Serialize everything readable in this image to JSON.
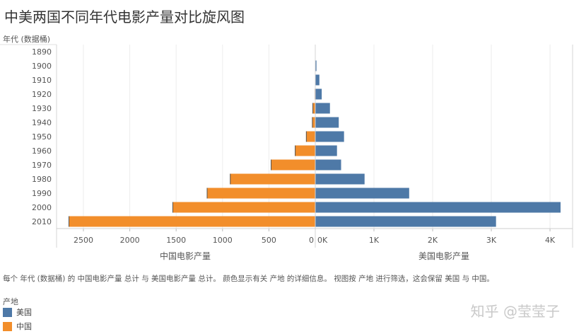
{
  "title": "中美两国不同年代电影产量对比旋风图",
  "y_header": "年代 (数据桶)",
  "caption": "每个 年代 (数据桶) 的 中国电影产量 总计 与 美国电影产量 总计。 颜色显示有关 产地 的详细信息。 视图按 产地 进行筛选，这会保留 美国 与 中国。",
  "legend": {
    "title": "产地",
    "items": [
      {
        "label": "美国",
        "color": "#4e79a7"
      },
      {
        "label": "中国",
        "color": "#f28e2b"
      }
    ]
  },
  "watermark": "知乎 @莹莹子",
  "chart_data": {
    "type": "bar",
    "orientation": "horizontal-butterfly",
    "categories": [
      "1890",
      "1900",
      "1910",
      "1920",
      "1930",
      "1940",
      "1950",
      "1960",
      "1970",
      "1980",
      "1990",
      "2000",
      "2010"
    ],
    "series": [
      {
        "name": "中国电影产量",
        "side": "left",
        "color": "#f28e2b",
        "values": [
          0,
          0,
          0,
          5,
          30,
          35,
          100,
          220,
          480,
          920,
          1170,
          1540,
          2660
        ]
      },
      {
        "name": "美国电影产量",
        "side": "right",
        "color": "#4e79a7",
        "values": [
          0,
          20,
          70,
          110,
          250,
          400,
          490,
          370,
          440,
          840,
          1600,
          4180,
          3080
        ]
      }
    ],
    "left_axis": {
      "label": "中国电影产量",
      "ticks": [
        2500,
        2000,
        1500,
        1000,
        500,
        0
      ],
      "tick_labels": [
        "2500",
        "2000",
        "1500",
        "1000",
        "500",
        "0"
      ],
      "max": 2800
    },
    "right_axis": {
      "label": "美国电影产量",
      "ticks": [
        0,
        1000,
        2000,
        3000,
        4000
      ],
      "tick_labels": [
        "0K",
        "1K",
        "2K",
        "3K",
        "4K"
      ],
      "max": 4300
    },
    "grid": true,
    "legend_position": "bottom-left"
  }
}
